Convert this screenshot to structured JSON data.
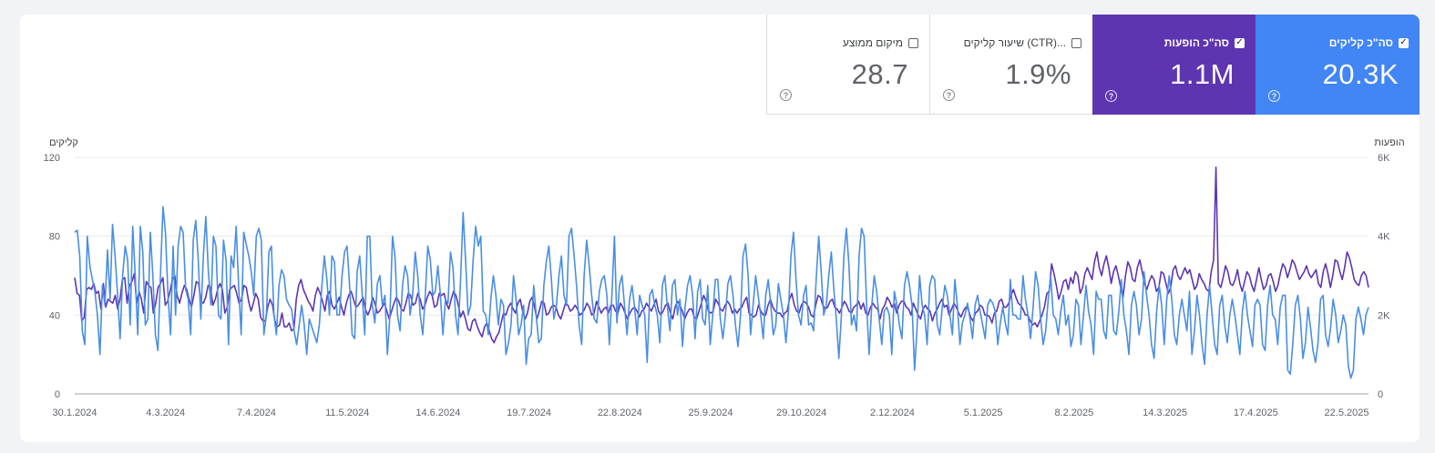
{
  "metrics": [
    {
      "key": "clicks",
      "label": "סה\"כ קליקים",
      "value": "20.3K",
      "selected": true,
      "color": "#4285f4",
      "help_icon": "help-circle-icon"
    },
    {
      "key": "impressions",
      "label": "סה\"כ הופעות",
      "value": "1.1M",
      "selected": true,
      "color": "#5e35b1",
      "help_icon": "help-circle-icon"
    },
    {
      "key": "ctr",
      "label": "שיעור קליקים (CTR)...",
      "value": "1.9%",
      "selected": false,
      "help_icon": "help-circle-icon"
    },
    {
      "key": "position",
      "label": "מיקום ממוצע",
      "value": "28.7",
      "selected": false,
      "help_icon": "help-circle-icon"
    }
  ],
  "check_glyph": "✓",
  "help_glyph": "?",
  "chart_data": {
    "type": "line",
    "title": "",
    "x_tick_labels": [
      "30.1.2024",
      "4.3.2024",
      "7.4.2024",
      "11.5.2024",
      "14.6.2024",
      "19.7.2024",
      "22.8.2024",
      "25.9.2024",
      "29.10.2024",
      "2.12.2024",
      "5.1.2025",
      "8.2.2025",
      "14.3.2025",
      "17.4.2025",
      "22.5.2025"
    ],
    "x_range": [
      "30.1.2024",
      "27.5.2025"
    ],
    "left_axis": {
      "title": "קליקים",
      "ticks": [
        "0",
        "40",
        "80",
        "120"
      ],
      "range": [
        0,
        120
      ]
    },
    "right_axis": {
      "title": "הופעות",
      "ticks": [
        "0",
        "2K",
        "4K",
        "6K"
      ],
      "range": [
        0,
        6000
      ]
    },
    "grid": true,
    "series": [
      {
        "name": "סה\"כ קליקים",
        "axis": "left",
        "color": "#4a8ee2",
        "values": [
          82,
          83,
          70,
          32,
          25,
          80,
          65,
          58,
          52,
          40,
          20,
          55,
          45,
          73,
          48,
          86,
          70,
          50,
          28,
          60,
          75,
          68,
          35,
          85,
          60,
          30,
          85,
          72,
          35,
          38,
          82,
          60,
          30,
          22,
          60,
          95,
          82,
          50,
          30,
          75,
          40,
          75,
          85,
          82,
          53,
          48,
          30,
          78,
          88,
          68,
          38,
          70,
          90,
          62,
          45,
          80,
          75,
          40,
          38,
          78,
          68,
          25,
          70,
          64,
          85,
          55,
          30,
          82,
          76,
          70,
          62,
          50,
          80,
          84,
          78,
          30,
          40,
          72,
          75,
          40,
          30,
          55,
          63,
          60,
          48,
          45,
          43,
          32,
          25,
          35,
          45,
          35,
          20,
          38,
          34,
          30,
          26,
          35,
          55,
          70,
          58,
          40,
          70,
          67,
          40,
          40,
          60,
          72,
          75,
          55,
          30,
          28,
          62,
          70,
          50,
          30,
          80,
          80,
          45,
          36,
          56,
          60,
          45,
          50,
          20,
          40,
          80,
          70,
          40,
          32,
          55,
          65,
          60,
          40,
          50,
          72,
          60,
          40,
          30,
          50,
          75,
          68,
          50,
          52,
          65,
          50,
          30,
          48,
          46,
          72,
          64,
          40,
          30,
          58,
          92,
          68,
          40,
          45,
          68,
          85,
          75,
          80,
          42,
          40,
          30,
          48,
          60,
          50,
          35,
          48,
          45,
          20,
          26,
          35,
          60,
          48,
          30,
          35,
          45,
          15,
          28,
          30,
          55,
          40,
          26,
          28,
          55,
          67,
          75,
          58,
          38,
          45,
          60,
          70,
          50,
          45,
          80,
          84,
          70,
          55,
          35,
          25,
          60,
          78,
          65,
          50,
          38,
          36,
          52,
          58,
          60,
          50,
          25,
          50,
          80,
          36,
          55,
          60,
          45,
          30,
          48,
          55,
          44,
          30,
          50,
          45,
          40,
          16,
          50,
          53,
          45,
          40,
          26,
          55,
          60,
          44,
          32,
          55,
          58,
          40,
          48,
          24,
          44,
          55,
          60,
          50,
          28,
          52,
          58,
          38,
          35,
          55,
          25,
          40,
          58,
          58,
          38,
          28,
          40,
          56,
          60,
          50,
          35,
          24,
          40,
          70,
          76,
          60,
          30,
          45,
          60,
          50,
          40,
          28,
          50,
          58,
          45,
          30,
          35,
          56,
          48,
          40,
          26,
          42,
          70,
          82,
          58,
          40,
          35,
          50,
          55,
          35,
          36,
          32,
          58,
          80,
          62,
          40,
          45,
          60,
          72,
          53,
          38,
          18,
          40,
          70,
          84,
          65,
          35,
          40,
          32,
          70,
          84,
          80,
          45,
          20,
          44,
          60,
          52,
          38,
          25,
          42,
          44,
          40,
          20,
          52,
          45,
          35,
          28,
          55,
          62,
          55,
          45,
          12,
          33,
          60,
          45,
          40,
          25,
          55,
          60,
          58,
          35,
          30,
          44,
          55,
          50,
          40,
          30,
          58,
          45,
          25,
          36,
          40,
          46,
          38,
          28,
          45,
          50,
          42,
          35,
          28,
          45,
          48,
          46,
          42,
          25,
          36,
          44,
          36,
          30,
          58,
          40,
          40,
          38,
          38,
          60,
          48,
          40,
          28,
          44,
          62,
          55,
          38,
          25,
          32,
          48,
          60,
          40,
          38,
          30,
          42,
          50,
          35,
          40,
          24,
          30,
          48,
          45,
          25,
          40,
          55,
          42,
          35,
          20,
          52,
          48,
          48,
          32,
          28,
          50,
          50,
          32,
          30,
          42,
          58,
          40,
          32,
          20,
          45,
          52,
          45,
          30,
          38,
          62,
          50,
          40,
          25,
          18,
          42,
          55,
          45,
          25,
          48,
          60,
          48,
          30,
          25,
          40,
          48,
          40,
          32,
          52,
          20,
          32,
          50,
          40,
          25,
          15,
          40,
          55,
          40,
          25,
          20,
          45,
          50,
          35,
          26,
          40,
          48,
          40,
          30,
          20,
          42,
          52,
          40,
          32,
          24,
          45,
          48,
          45,
          25,
          22,
          45,
          55,
          40,
          38,
          25,
          44,
          50,
          50,
          12,
          10,
          26,
          45,
          50,
          38,
          18,
          26,
          44,
          34,
          22,
          16,
          26,
          48,
          50,
          30,
          24,
          34,
          48,
          40,
          26,
          32,
          40,
          35,
          14,
          8,
          12,
          38,
          44,
          38,
          30,
          40,
          44
        ],
        "notes": "daily values, approximately 484 days; visible peak ~95"
      },
      {
        "name": "סה\"כ הופעות",
        "axis": "right",
        "color": "#5e35b1",
        "values": [
          2950,
          2550,
          2500,
          1850,
          1950,
          2650,
          2700,
          2650,
          2800,
          2550,
          2600,
          2150,
          2800,
          2200,
          2400,
          2350,
          2300,
          2500,
          2150,
          2400,
          2900,
          2950,
          2300,
          2750,
          2850,
          3050,
          2300,
          2600,
          2400,
          2050,
          2850,
          2750,
          2700,
          2050,
          2300,
          2700,
          2800,
          2950,
          2250,
          2350,
          2600,
          2900,
          3000,
          2500,
          2300,
          2550,
          2750,
          2650,
          2400,
          2200,
          2500,
          2850,
          2800,
          2350,
          2300,
          2450,
          2750,
          2700,
          2250,
          2400,
          2650,
          2800,
          2650,
          2050,
          2200,
          2650,
          2700,
          2750,
          2550,
          2300,
          2400,
          2750,
          2700,
          2350,
          2100,
          2300,
          2550,
          2400,
          1950,
          1850,
          1850,
          2200,
          2400,
          2250,
          1850,
          1700,
          1750,
          2050,
          1700,
          1700,
          1800,
          1600,
          1650,
          2400,
          2750,
          2900,
          2650,
          2500,
          2350,
          2250,
          2100,
          2500,
          2700,
          2550,
          2350,
          2100,
          2500,
          2600,
          2250,
          2150,
          2300,
          2450,
          2200,
          2000,
          2300,
          2500,
          2600,
          2400,
          2200,
          2250,
          2350,
          2450,
          2150,
          2000,
          2150,
          2450,
          2300,
          2050,
          2100,
          2200,
          2300,
          2100,
          1900,
          2100,
          2300,
          2450,
          2350,
          2150,
          2100,
          2300,
          2550,
          2500,
          2250,
          2300,
          2550,
          2400,
          2150,
          2250,
          2450,
          2600,
          2500,
          2200,
          2250,
          2550,
          2500,
          2550,
          2300,
          2150,
          2400,
          2600,
          2500,
          2250,
          1950,
          2100,
          1900,
          1650,
          1600,
          1850,
          1900,
          1700,
          1550,
          1450,
          1700,
          1800,
          1600,
          1400,
          1300,
          1450,
          1550,
          1800,
          2050,
          2000,
          2200,
          2300,
          2150,
          2050,
          2300,
          2400,
          2100,
          1900,
          2050,
          2350,
          2450,
          2200,
          1900,
          2100,
          2350,
          2300,
          2000,
          2050,
          2200,
          2250,
          2200,
          2000,
          1900,
          2100,
          2300,
          2250,
          2100,
          2150,
          2250,
          2150,
          2000,
          2050,
          2150,
          2300,
          2200,
          2000,
          2050,
          2350,
          2200,
          2050,
          2150,
          2200,
          2050,
          2250,
          2250,
          2100,
          2050,
          2300,
          2200,
          2050,
          1900,
          2050,
          2150,
          2200,
          2100,
          1950,
          2100,
          2150,
          2300,
          2200,
          2100,
          2250,
          2400,
          2100,
          2000,
          2100,
          2250,
          2300,
          2050,
          1900,
          2200,
          2350,
          2250,
          2100,
          1900,
          2050,
          2150,
          2150,
          1950,
          1900,
          2100,
          2300,
          2500,
          2350,
          2100,
          2050,
          2100,
          2400,
          2300,
          2150,
          2100,
          2250,
          2350,
          2250,
          2050,
          2150,
          2050,
          2150,
          2200,
          2350,
          2450,
          2050,
          2000,
          1950,
          2000,
          2250,
          2100,
          2000,
          2000,
          2250,
          2400,
          2200,
          2100,
          2050,
          2050,
          1950,
          2050,
          2100,
          2400,
          2550,
          2250,
          2100,
          2050,
          2250,
          2350,
          2300,
          2200,
          2000,
          1950,
          2250,
          2500,
          2450,
          2250,
          2150,
          2200,
          2350,
          2400,
          2200,
          2150,
          2050,
          2200,
          2350,
          2250,
          2100,
          2050,
          2200,
          2250,
          2350,
          2150,
          2300,
          2050,
          2000,
          2200,
          2300,
          2200,
          2150,
          1900,
          2150,
          2250,
          2450,
          2350,
          2200,
          2300,
          2050,
          2250,
          2350,
          2350,
          2200,
          2150,
          2000,
          2300,
          2150,
          2000,
          1900,
          2150,
          2250,
          2150,
          2100,
          1850,
          2050,
          2150,
          2300,
          2400,
          2200,
          2250,
          2000,
          2150,
          2300,
          2200,
          2050,
          1950,
          2100,
          2200,
          2150,
          1950,
          1850,
          2050,
          2100,
          2250,
          2200,
          2000,
          2000,
          1950,
          1800,
          2050,
          2100,
          2350,
          2400,
          2200,
          2200,
          2300,
          2500,
          2650,
          2450,
          2300,
          2250,
          2150,
          2000,
          2000,
          1850,
          1750,
          1800,
          1700,
          1850,
          2000,
          2200,
          2550,
          2600,
          3300,
          3050,
          2750,
          2400,
          2600,
          2850,
          2900,
          2650,
          2950,
          2800,
          3100,
          3000,
          2550,
          2700,
          3050,
          3200,
          3050,
          2900,
          3350,
          3600,
          3200,
          3000,
          3300,
          3500,
          3200,
          2800,
          3100,
          3250,
          3000,
          2700,
          2450,
          3000,
          3350,
          3200,
          2900,
          2850,
          3200,
          3400,
          3100,
          2800,
          2650,
          2850,
          3000,
          2900,
          2600,
          2700,
          3100,
          3050,
          2800,
          2550,
          2700,
          3150,
          3250,
          3000,
          2900,
          3050,
          3200,
          3050,
          3150,
          2900,
          2650,
          2750,
          3050,
          2900,
          2800,
          2650,
          2600,
          3100,
          3400,
          5750,
          2800,
          2700,
          2950,
          3250,
          3100,
          2800,
          2750,
          2900,
          3150,
          2800,
          2600,
          2850,
          3100,
          3000,
          2750,
          2600,
          2900,
          3200,
          2900,
          2650,
          2750,
          3000,
          3050,
          2850,
          2600,
          2750,
          3050,
          3300,
          3200,
          2950,
          3150,
          3400,
          3300,
          3100,
          2900,
          3000,
          3100,
          3250,
          3050,
          2950,
          3050,
          3150,
          2800,
          2700,
          3100,
          3300,
          3050,
          2700,
          3000,
          3400,
          3350,
          3100,
          2900,
          3200,
          3600,
          3450,
          3200,
          2900,
          2800,
          2750,
          3000,
          3100,
          3000,
          2700
        ]
      }
    ]
  }
}
